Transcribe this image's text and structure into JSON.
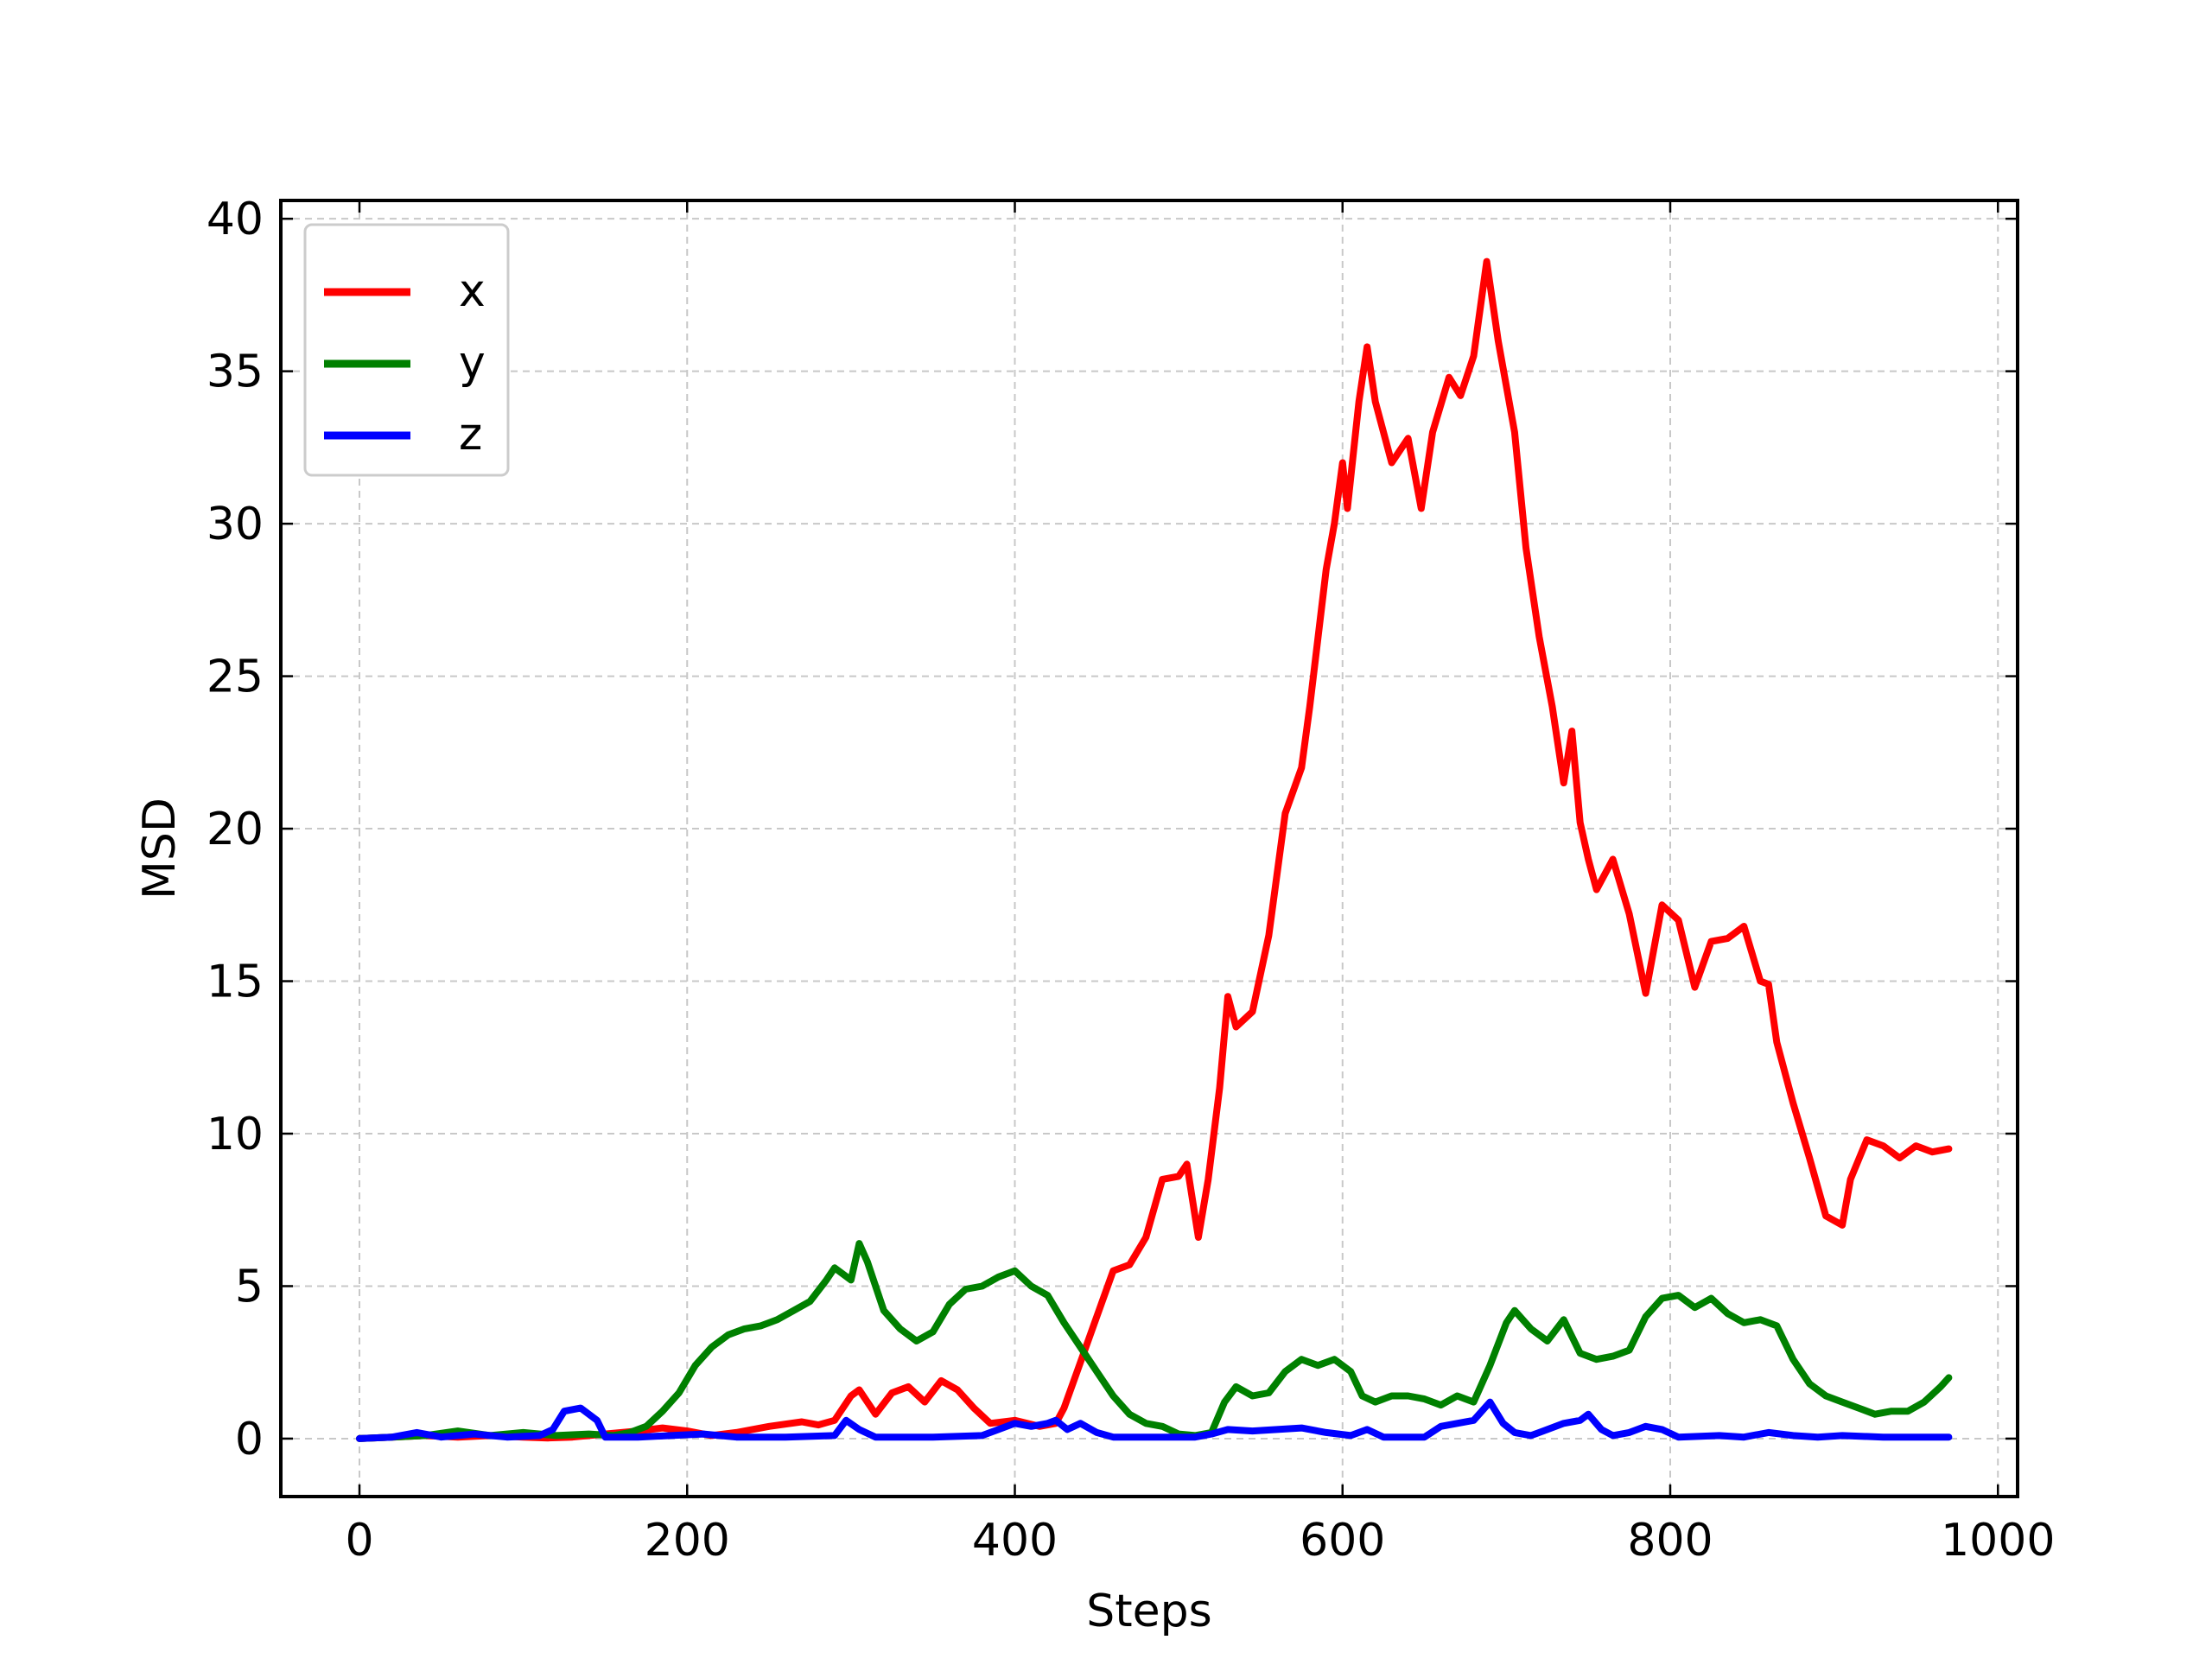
{
  "chart_data": {
    "type": "line",
    "title": "",
    "xlabel": "Steps",
    "ylabel": "MSD",
    "xlim": [
      -48,
      1012
    ],
    "ylim": [
      -1.9,
      40.6
    ],
    "xticks": [
      0,
      200,
      400,
      600,
      800,
      1000
    ],
    "yticks": [
      0,
      5,
      10,
      15,
      20,
      25,
      30,
      35,
      40
    ],
    "grid": true,
    "legend_position": "top-left",
    "series": [
      {
        "name": "x",
        "color": "#ff0000",
        "points": [
          [
            0,
            0
          ],
          [
            20,
            0.05
          ],
          [
            40,
            0.1
          ],
          [
            60,
            0.05
          ],
          [
            80,
            0.1
          ],
          [
            100,
            0.05
          ],
          [
            115,
            0.02
          ],
          [
            130,
            0.05
          ],
          [
            150,
            0.15
          ],
          [
            170,
            0.25
          ],
          [
            185,
            0.35
          ],
          [
            200,
            0.25
          ],
          [
            215,
            0.1
          ],
          [
            230,
            0.2
          ],
          [
            250,
            0.4
          ],
          [
            270,
            0.55
          ],
          [
            280,
            0.45
          ],
          [
            290,
            0.6
          ],
          [
            300,
            1.4
          ],
          [
            305,
            1.6
          ],
          [
            315,
            0.8
          ],
          [
            325,
            1.5
          ],
          [
            335,
            1.7
          ],
          [
            345,
            1.2
          ],
          [
            355,
            1.9
          ],
          [
            365,
            1.6
          ],
          [
            375,
            1.0
          ],
          [
            385,
            0.5
          ],
          [
            400,
            0.6
          ],
          [
            415,
            0.4
          ],
          [
            425,
            0.5
          ],
          [
            430,
            1.0
          ],
          [
            440,
            2.5
          ],
          [
            450,
            4.0
          ],
          [
            460,
            5.5
          ],
          [
            470,
            5.7
          ],
          [
            480,
            6.6
          ],
          [
            490,
            8.5
          ],
          [
            500,
            8.6
          ],
          [
            505,
            9.0
          ],
          [
            512,
            6.6
          ],
          [
            518,
            8.5
          ],
          [
            525,
            11.5
          ],
          [
            530,
            14.5
          ],
          [
            535,
            13.5
          ],
          [
            545,
            14.0
          ],
          [
            555,
            16.5
          ],
          [
            565,
            20.5
          ],
          [
            575,
            22.0
          ],
          [
            580,
            24.0
          ],
          [
            590,
            28.5
          ],
          [
            595,
            30.0
          ],
          [
            600,
            32.0
          ],
          [
            603,
            30.5
          ],
          [
            610,
            34.0
          ],
          [
            615,
            35.8
          ],
          [
            620,
            34.0
          ],
          [
            630,
            32.0
          ],
          [
            640,
            32.8
          ],
          [
            648,
            30.5
          ],
          [
            655,
            33.0
          ],
          [
            665,
            34.8
          ],
          [
            672,
            34.2
          ],
          [
            680,
            35.5
          ],
          [
            688,
            38.6
          ],
          [
            695,
            36.0
          ],
          [
            705,
            33.0
          ],
          [
            712,
            29.2
          ],
          [
            720,
            26.3
          ],
          [
            728,
            24.0
          ],
          [
            735,
            21.5
          ],
          [
            740,
            23.2
          ],
          [
            745,
            20.2
          ],
          [
            750,
            19.0
          ],
          [
            755,
            18.0
          ],
          [
            765,
            19.0
          ],
          [
            775,
            17.2
          ],
          [
            785,
            14.6
          ],
          [
            795,
            17.5
          ],
          [
            805,
            17.0
          ],
          [
            815,
            14.8
          ],
          [
            825,
            16.3
          ],
          [
            835,
            16.4
          ],
          [
            845,
            16.8
          ],
          [
            855,
            15.0
          ],
          [
            860,
            14.9
          ],
          [
            865,
            13.0
          ],
          [
            875,
            11.0
          ],
          [
            885,
            9.2
          ],
          [
            895,
            7.3
          ],
          [
            905,
            7.0
          ],
          [
            910,
            8.5
          ],
          [
            920,
            9.8
          ],
          [
            930,
            9.6
          ],
          [
            940,
            9.2
          ],
          [
            950,
            9.6
          ],
          [
            960,
            9.4
          ],
          [
            970,
            9.5
          ]
        ]
      },
      {
        "name": "y",
        "color": "#008000",
        "points": [
          [
            0,
            0
          ],
          [
            20,
            0.05
          ],
          [
            40,
            0.1
          ],
          [
            60,
            0.25
          ],
          [
            80,
            0.1
          ],
          [
            100,
            0.2
          ],
          [
            120,
            0.1
          ],
          [
            140,
            0.15
          ],
          [
            155,
            0.1
          ],
          [
            165,
            0.2
          ],
          [
            175,
            0.4
          ],
          [
            185,
            0.9
          ],
          [
            195,
            1.5
          ],
          [
            205,
            2.4
          ],
          [
            215,
            3.0
          ],
          [
            225,
            3.4
          ],
          [
            235,
            3.6
          ],
          [
            245,
            3.7
          ],
          [
            255,
            3.9
          ],
          [
            265,
            4.2
          ],
          [
            275,
            4.5
          ],
          [
            285,
            5.2
          ],
          [
            290,
            5.6
          ],
          [
            300,
            5.2
          ],
          [
            305,
            6.4
          ],
          [
            310,
            5.8
          ],
          [
            320,
            4.2
          ],
          [
            330,
            3.6
          ],
          [
            340,
            3.2
          ],
          [
            350,
            3.5
          ],
          [
            360,
            4.4
          ],
          [
            370,
            4.9
          ],
          [
            380,
            5.0
          ],
          [
            390,
            5.3
          ],
          [
            400,
            5.5
          ],
          [
            410,
            5.0
          ],
          [
            420,
            4.7
          ],
          [
            430,
            3.8
          ],
          [
            440,
            3.0
          ],
          [
            450,
            2.2
          ],
          [
            460,
            1.4
          ],
          [
            470,
            0.8
          ],
          [
            480,
            0.5
          ],
          [
            490,
            0.4
          ],
          [
            500,
            0.15
          ],
          [
            510,
            0.1
          ],
          [
            520,
            0.2
          ],
          [
            528,
            1.2
          ],
          [
            535,
            1.7
          ],
          [
            545,
            1.4
          ],
          [
            555,
            1.5
          ],
          [
            565,
            2.2
          ],
          [
            575,
            2.6
          ],
          [
            585,
            2.4
          ],
          [
            595,
            2.6
          ],
          [
            605,
            2.2
          ],
          [
            612,
            1.4
          ],
          [
            620,
            1.2
          ],
          [
            630,
            1.4
          ],
          [
            640,
            1.4
          ],
          [
            650,
            1.3
          ],
          [
            660,
            1.1
          ],
          [
            670,
            1.4
          ],
          [
            680,
            1.2
          ],
          [
            690,
            2.4
          ],
          [
            700,
            3.8
          ],
          [
            705,
            4.2
          ],
          [
            715,
            3.6
          ],
          [
            725,
            3.2
          ],
          [
            735,
            3.9
          ],
          [
            745,
            2.8
          ],
          [
            755,
            2.6
          ],
          [
            765,
            2.7
          ],
          [
            775,
            2.9
          ],
          [
            785,
            4.0
          ],
          [
            795,
            4.6
          ],
          [
            805,
            4.7
          ],
          [
            815,
            4.3
          ],
          [
            825,
            4.6
          ],
          [
            835,
            4.1
          ],
          [
            845,
            3.8
          ],
          [
            855,
            3.9
          ],
          [
            865,
            3.7
          ],
          [
            875,
            2.6
          ],
          [
            885,
            1.8
          ],
          [
            895,
            1.4
          ],
          [
            905,
            1.2
          ],
          [
            915,
            1.0
          ],
          [
            925,
            0.8
          ],
          [
            935,
            0.9
          ],
          [
            945,
            0.9
          ],
          [
            955,
            1.2
          ],
          [
            965,
            1.7
          ],
          [
            970,
            2.0
          ]
        ]
      },
      {
        "name": "z",
        "color": "#0000ff",
        "points": [
          [
            0,
            0
          ],
          [
            20,
            0.05
          ],
          [
            35,
            0.2
          ],
          [
            50,
            0.05
          ],
          [
            70,
            0.15
          ],
          [
            90,
            0.05
          ],
          [
            110,
            0.1
          ],
          [
            118,
            0.3
          ],
          [
            125,
            0.9
          ],
          [
            135,
            1.0
          ],
          [
            145,
            0.6
          ],
          [
            150,
            0.05
          ],
          [
            170,
            0.05
          ],
          [
            190,
            0.1
          ],
          [
            210,
            0.15
          ],
          [
            230,
            0.05
          ],
          [
            260,
            0.05
          ],
          [
            290,
            0.1
          ],
          [
            297,
            0.6
          ],
          [
            305,
            0.3
          ],
          [
            315,
            0.05
          ],
          [
            350,
            0.05
          ],
          [
            380,
            0.1
          ],
          [
            390,
            0.3
          ],
          [
            400,
            0.5
          ],
          [
            410,
            0.4
          ],
          [
            420,
            0.5
          ],
          [
            425,
            0.6
          ],
          [
            432,
            0.3
          ],
          [
            440,
            0.5
          ],
          [
            450,
            0.2
          ],
          [
            460,
            0.05
          ],
          [
            480,
            0.05
          ],
          [
            500,
            0.05
          ],
          [
            510,
            0.05
          ],
          [
            520,
            0.15
          ],
          [
            530,
            0.3
          ],
          [
            545,
            0.25
          ],
          [
            560,
            0.3
          ],
          [
            575,
            0.35
          ],
          [
            590,
            0.2
          ],
          [
            605,
            0.1
          ],
          [
            615,
            0.3
          ],
          [
            625,
            0.05
          ],
          [
            650,
            0.05
          ],
          [
            660,
            0.4
          ],
          [
            670,
            0.5
          ],
          [
            680,
            0.6
          ],
          [
            690,
            1.2
          ],
          [
            698,
            0.5
          ],
          [
            705,
            0.2
          ],
          [
            715,
            0.1
          ],
          [
            725,
            0.3
          ],
          [
            735,
            0.5
          ],
          [
            745,
            0.6
          ],
          [
            750,
            0.8
          ],
          [
            758,
            0.3
          ],
          [
            765,
            0.1
          ],
          [
            775,
            0.2
          ],
          [
            785,
            0.4
          ],
          [
            795,
            0.3
          ],
          [
            805,
            0.05
          ],
          [
            830,
            0.1
          ],
          [
            845,
            0.05
          ],
          [
            860,
            0.2
          ],
          [
            875,
            0.1
          ],
          [
            890,
            0.05
          ],
          [
            905,
            0.1
          ],
          [
            930,
            0.05
          ],
          [
            950,
            0.05
          ],
          [
            970,
            0.05
          ]
        ]
      }
    ]
  }
}
